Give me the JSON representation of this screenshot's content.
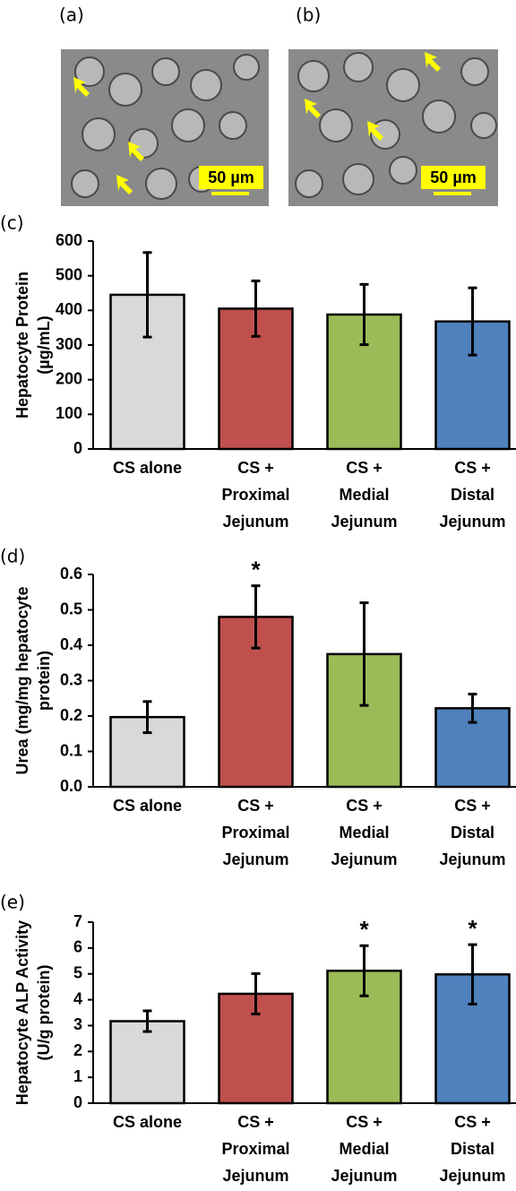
{
  "images": [
    {
      "label": "(a)",
      "scale_bar": "50 µm"
    },
    {
      "label": "(b)",
      "scale_bar": "50 µm"
    }
  ],
  "chart_data": [
    {
      "type": "bar",
      "panel": "(c)",
      "ylabel": [
        "Hepatocyte Protein",
        "(µg/mL)"
      ],
      "categories": [
        [
          "CS alone"
        ],
        [
          "CS +",
          "Proximal",
          "Jejunum"
        ],
        [
          "CS +",
          "Medial",
          "Jejunum"
        ],
        [
          "CS +",
          "Distal",
          "Jejunum"
        ]
      ],
      "values": [
        445,
        405,
        388,
        368
      ],
      "errors": [
        122,
        80,
        87,
        97
      ],
      "colors": [
        "#d9d9d9",
        "#c0504d",
        "#9bbb59",
        "#4f81bd"
      ],
      "ylim": [
        0,
        600
      ],
      "yticks": [
        0,
        100,
        200,
        300,
        400,
        500,
        600
      ]
    },
    {
      "type": "bar",
      "panel": "(d)",
      "ylabel": [
        "Urea (mg/mg hepatocyte",
        "protein)"
      ],
      "categories": [
        [
          "CS alone"
        ],
        [
          "CS +",
          "Proximal",
          "Jejunum"
        ],
        [
          "CS +",
          "Medial",
          "Jejunum"
        ],
        [
          "CS +",
          "Distal",
          "Jejunum"
        ]
      ],
      "values": [
        0.197,
        0.48,
        0.375,
        0.222
      ],
      "errors": [
        0.044,
        0.088,
        0.145,
        0.04
      ],
      "significance": [
        null,
        "*",
        null,
        null
      ],
      "colors": [
        "#d9d9d9",
        "#c0504d",
        "#9bbb59",
        "#4f81bd"
      ],
      "ylim": [
        0,
        0.6
      ],
      "yticks": [
        {
          "value": 0,
          "label": "0.0"
        },
        0.1,
        0.2,
        0.3,
        0.4,
        0.5,
        0.6
      ]
    },
    {
      "type": "bar",
      "panel": "(e)",
      "ylabel": [
        "Hepatocyte ALP Activity",
        "(U/g protein)"
      ],
      "categories": [
        [
          "CS alone"
        ],
        [
          "CS +",
          "Proximal",
          "Jejunum"
        ],
        [
          "CS +",
          "Medial",
          "Jejunum"
        ],
        [
          "CS +",
          "Distal",
          "Jejunum"
        ]
      ],
      "values": [
        3.17,
        4.23,
        5.12,
        4.98
      ],
      "errors": [
        0.4,
        0.78,
        0.97,
        1.15
      ],
      "significance": [
        null,
        null,
        "*",
        "*"
      ],
      "colors": [
        "#d9d9d9",
        "#c0504d",
        "#9bbb59",
        "#4f81bd"
      ],
      "ylim": [
        0,
        7
      ],
      "yticks": [
        0,
        1,
        2,
        3,
        4,
        5,
        6,
        7
      ]
    }
  ]
}
